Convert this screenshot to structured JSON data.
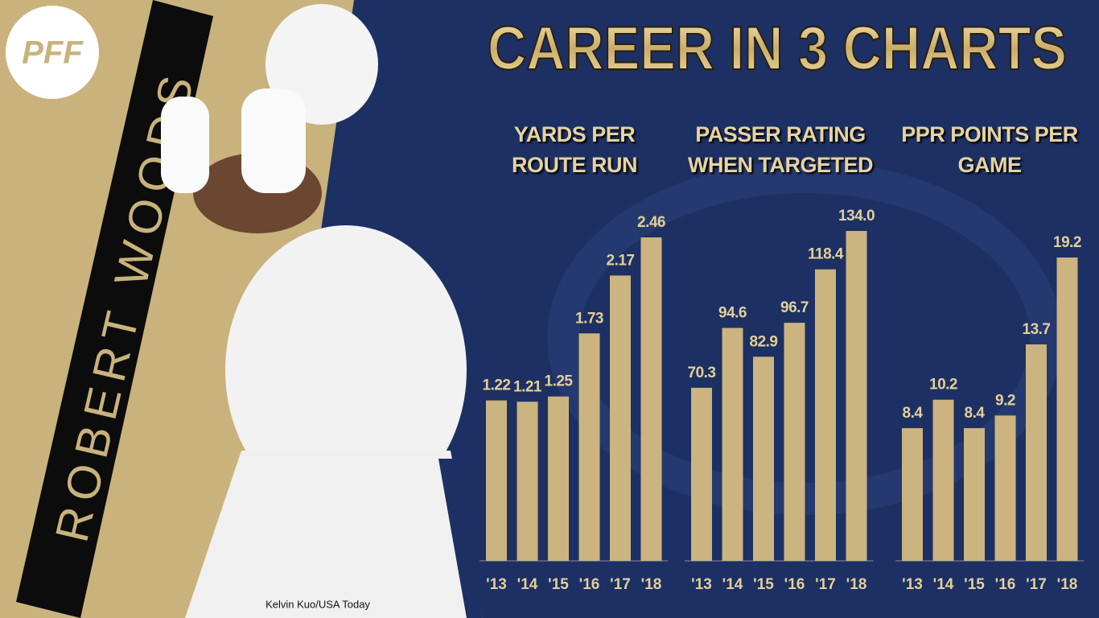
{
  "title": "CAREER IN 3 CHARTS",
  "player": "ROBERT WOODS",
  "logo": "PFF",
  "credit": "Kelvin Kuo/USA Today",
  "chart_data": [
    {
      "type": "bar",
      "title": "YARDS PER ROUTE RUN",
      "color": "#cbb47f",
      "categories": [
        "'13",
        "'14",
        "'15",
        "'16",
        "'17",
        "'18"
      ],
      "values": [
        1.22,
        1.21,
        1.25,
        1.73,
        2.17,
        2.46
      ],
      "value_labels": [
        "1.22",
        "1.21",
        "1.25",
        "1.73",
        "2.17",
        "2.46"
      ]
    },
    {
      "type": "bar",
      "title": "PASSER RATING WHEN TARGETED",
      "color": "#cbb47f",
      "categories": [
        "'13",
        "'14",
        "'15",
        "'16",
        "'17",
        "'18"
      ],
      "values": [
        70.3,
        94.6,
        82.9,
        96.7,
        118.4,
        134.0
      ],
      "value_labels": [
        "70.3",
        "94.6",
        "82.9",
        "96.7",
        "118.4",
        "134.0"
      ]
    },
    {
      "type": "bar",
      "title": "PPR POINTS PER GAME",
      "color": "#cbb47f",
      "categories": [
        "'13",
        "'14",
        "'15",
        "'16",
        "'17",
        "'18"
      ],
      "values": [
        8.4,
        10.2,
        8.4,
        9.2,
        13.7,
        19.2
      ],
      "value_labels": [
        "8.4",
        "10.2",
        "8.4",
        "9.2",
        "13.7",
        "19.2"
      ]
    }
  ]
}
